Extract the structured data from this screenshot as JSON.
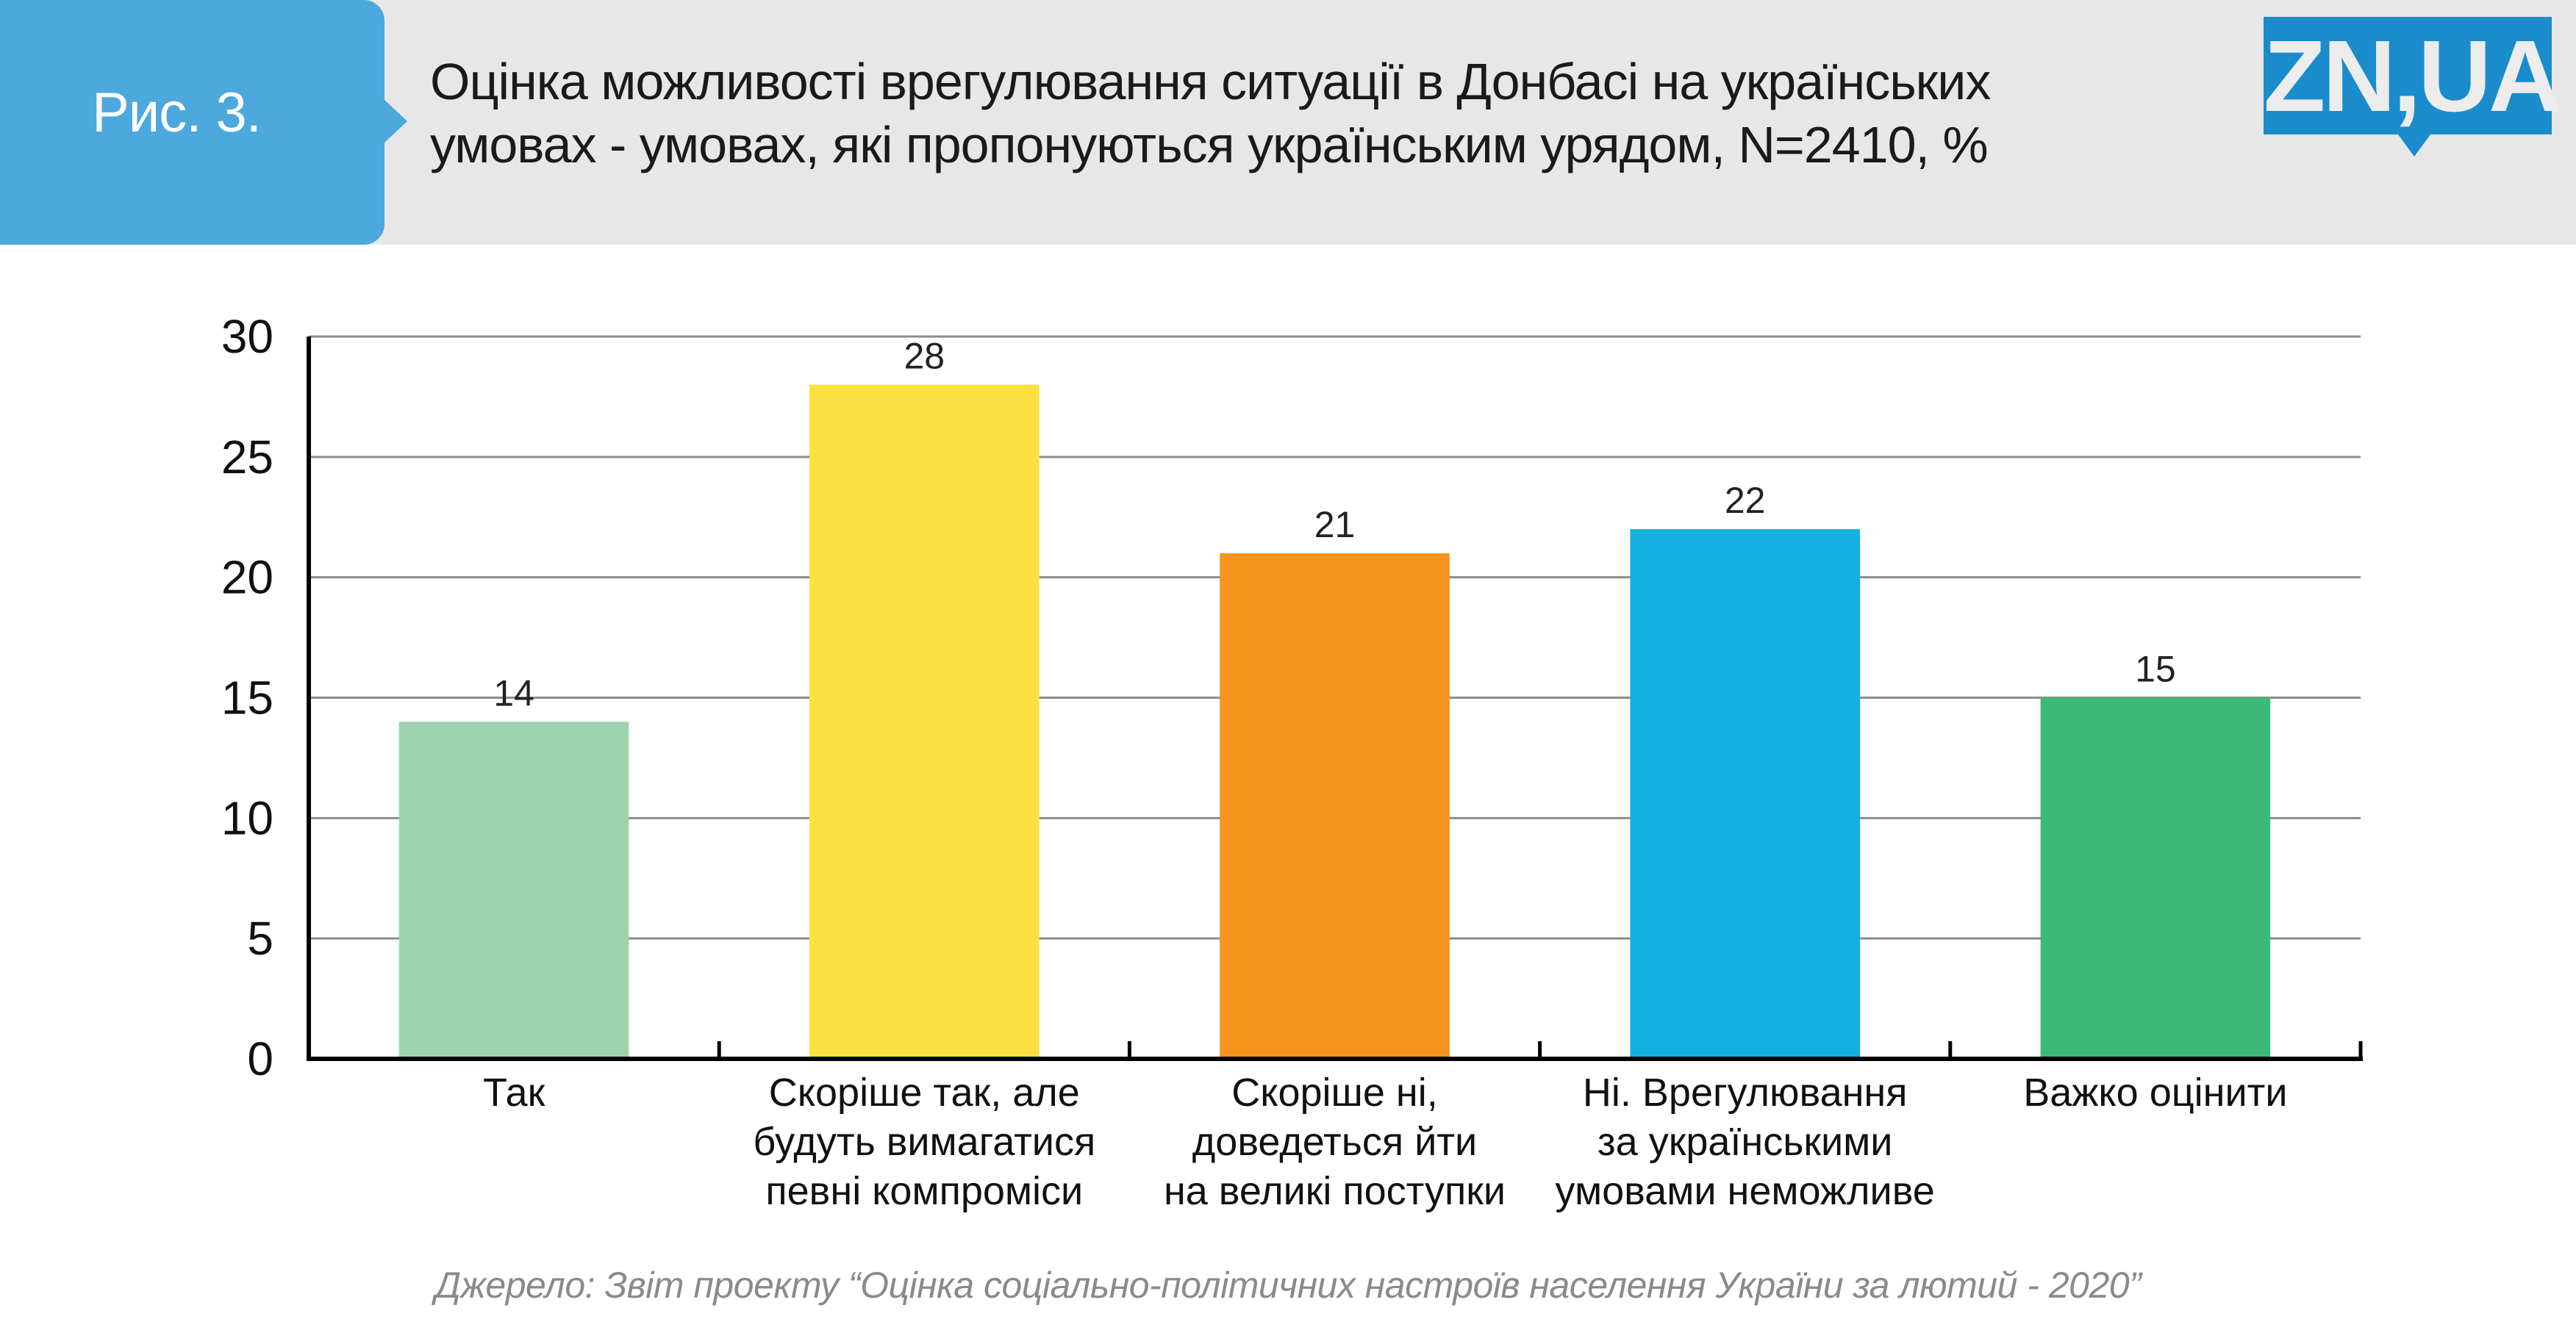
{
  "header": {
    "figure_label": "Рис. 3.",
    "title_lines": [
      "Оцінка можливості врегулювання ситуації в Донбасі на українських",
      "умовах - умовах, які пропонуються українським урядом, N=2410, %"
    ],
    "logo_text": "ZN,UA",
    "colors": {
      "figure_box": "#4da8de",
      "header_bg": "#e7e7e7",
      "logo_bg": "#1a8ccb"
    }
  },
  "chart_data": {
    "type": "bar",
    "title": "Оцінка можливості врегулювання ситуації в Донбасі на українських умовах - умовах, які пропонуються українським урядом, N=2410, %",
    "categories": [
      [
        "Так"
      ],
      [
        "Скоріше так, але",
        "будуть вимагатися",
        "певні компроміси"
      ],
      [
        "Скоріше ні,",
        "доведеться йти",
        "на великі поступки"
      ],
      [
        "Ні. Врегулювання",
        "за українськими",
        "умовами неможливе"
      ],
      [
        "Важко оцінити"
      ]
    ],
    "values": [
      14,
      28,
      21,
      22,
      15
    ],
    "value_labels": [
      "14",
      "28",
      "21",
      "22",
      "15"
    ],
    "colors": [
      "#9dd4ae",
      "#fbe040",
      "#f7941e",
      "#14b0e0",
      "#3dba7a"
    ],
    "xlabel": "",
    "ylabel": "",
    "ylim": [
      0,
      30
    ],
    "yticks": [
      0,
      5,
      10,
      15,
      20,
      25,
      30
    ],
    "grid": true,
    "legend": "none"
  },
  "footer": {
    "source": "Джерело: Звіт проекту “Оцінка соціально-політичних настроїв населення України за лютий - 2020”"
  }
}
